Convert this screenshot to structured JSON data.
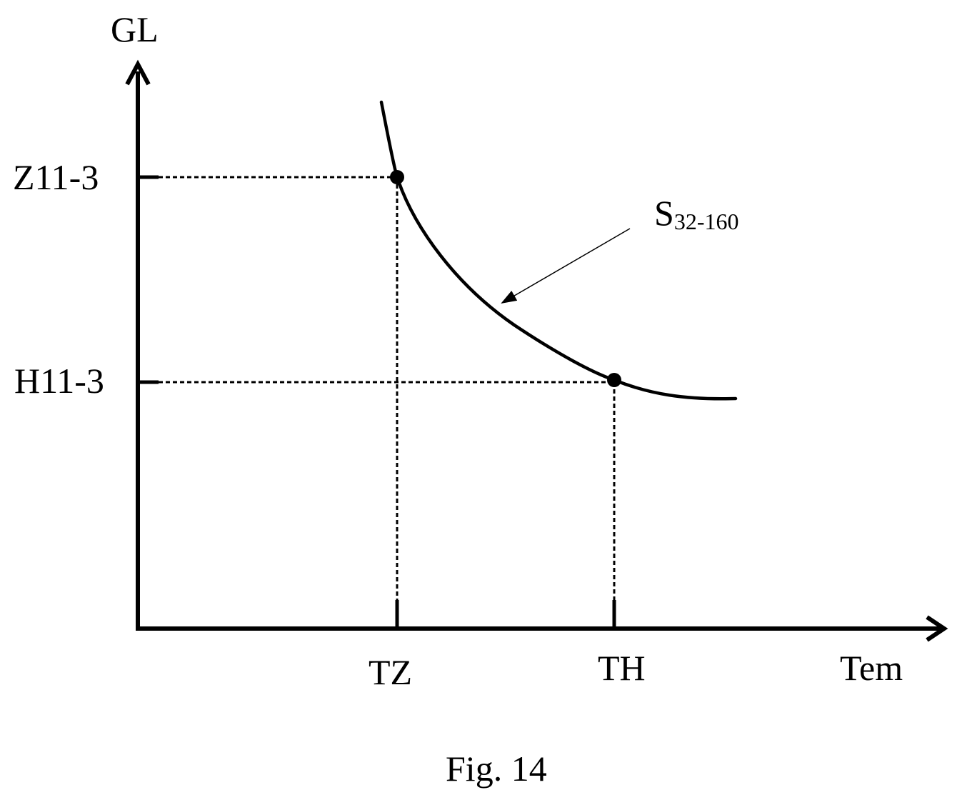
{
  "axes": {
    "y_label": "GL",
    "x_label": "Tem"
  },
  "y_ticks": [
    "Z11-3",
    "H11-3"
  ],
  "x_ticks": [
    "TZ",
    "TH"
  ],
  "curve": {
    "label_main": "S",
    "label_sub": "32-160"
  },
  "caption": "Fig. 14",
  "colors": {
    "ink": "#000000",
    "background": "#ffffff"
  }
}
